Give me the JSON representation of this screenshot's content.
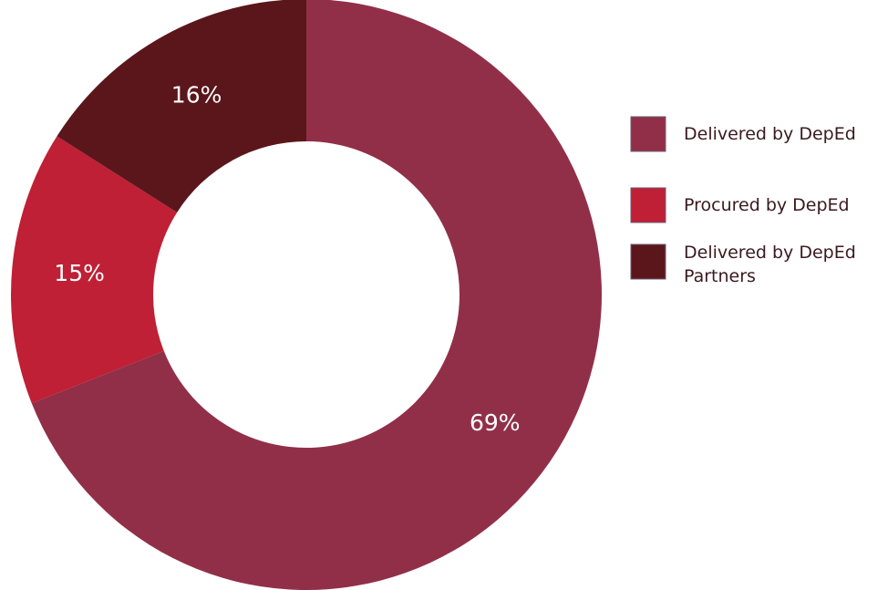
{
  "chart_data": {
    "type": "pie",
    "style": "donut",
    "categories": [
      "Delivered by DepEd",
      "Procured by DepEd",
      "Delivered by DepEd Partners"
    ],
    "values": [
      69,
      15,
      16
    ],
    "value_labels": [
      "69%",
      "15%",
      "16%"
    ],
    "colors": [
      "#912f49",
      "#bf2035",
      "#5b161b"
    ],
    "legend": {
      "placement": "right",
      "items": [
        {
          "lines": [
            "Delivered by DepEd"
          ]
        },
        {
          "lines": [
            "Procured by DepEd"
          ]
        },
        {
          "lines": [
            "Delivered by DepEd",
            "Partners"
          ]
        }
      ]
    }
  }
}
